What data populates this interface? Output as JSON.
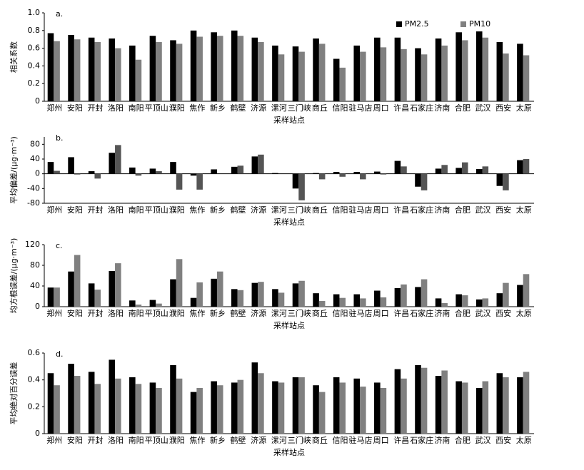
{
  "chart_data": [
    {
      "type": "bar",
      "title": "a.",
      "y_label": "相关系数",
      "x_label": "采样站点",
      "categories": [
        "郑州",
        "安阳",
        "开封",
        "洛阳",
        "南阳",
        "平顶山",
        "濮阳",
        "焦作",
        "新乡",
        "鹤壁",
        "济源",
        "漯河",
        "三门峡",
        "商丘",
        "信阳",
        "驻马店",
        "周口",
        "许昌",
        "石家庄",
        "济南",
        "合肥",
        "武汉",
        "西安",
        "太原"
      ],
      "series": [
        {
          "name": "PM2.5",
          "color": "#000000",
          "values": [
            0.77,
            0.75,
            0.72,
            0.71,
            0.63,
            0.74,
            0.69,
            0.8,
            0.78,
            0.8,
            0.72,
            0.63,
            0.62,
            0.71,
            0.48,
            0.63,
            0.72,
            0.72,
            0.6,
            0.71,
            0.78,
            0.79,
            0.67,
            0.65
          ]
        },
        {
          "name": "PM10",
          "color": "#808080",
          "values": [
            0.68,
            0.7,
            0.67,
            0.6,
            0.47,
            0.67,
            0.65,
            0.73,
            0.74,
            0.74,
            0.67,
            0.53,
            0.56,
            0.65,
            0.38,
            0.56,
            0.61,
            0.59,
            0.53,
            0.63,
            0.69,
            0.72,
            0.54,
            0.52
          ]
        }
      ],
      "ylim": [
        0,
        1
      ],
      "yticks": [
        0,
        0.2,
        0.4,
        0.6,
        0.8,
        {
          "value": 1,
          "label": "1.0"
        }
      ],
      "legend": "upper right"
    },
    {
      "type": "bar",
      "title": "b.",
      "y_label": "平均偏差/(μg·m⁻³)",
      "x_label": "采样站点",
      "categories": [
        "郑州",
        "安阳",
        "开封",
        "洛阳",
        "南阳",
        "平顶山",
        "濮阳",
        "焦作",
        "新乡",
        "鹤壁",
        "济源",
        "漯河",
        "三门峡",
        "商丘",
        "信阳",
        "驻马店",
        "周口",
        "许昌",
        "石家庄",
        "济南",
        "合肥",
        "武汉",
        "西安",
        "太原"
      ],
      "series": [
        {
          "color": "#000000",
          "values": [
            32,
            45,
            7,
            57,
            17,
            14,
            32,
            -5,
            12,
            19,
            47,
            2,
            -40,
            2,
            5,
            5,
            6,
            35,
            -35,
            14,
            16,
            13,
            -33,
            37
          ]
        },
        {
          "color": "#555555",
          "values": [
            8,
            -2,
            -13,
            78,
            -5,
            7,
            -43,
            -43,
            0,
            22,
            52,
            0,
            -72,
            -15,
            -8,
            -15,
            -2,
            20,
            -45,
            24,
            31,
            20,
            -45,
            40
          ]
        }
      ],
      "ylim": [
        -80,
        100
      ],
      "yticks": [
        -80,
        -40,
        0,
        40,
        80
      ]
    },
    {
      "type": "bar",
      "title": "c.",
      "y_label": "均方根误差/(μg·m⁻³)",
      "x_label": "采样站点",
      "categories": [
        "郑州",
        "安阳",
        "开封",
        "洛阳",
        "南阳",
        "平顶山",
        "濮阳",
        "焦作",
        "新乡",
        "鹤壁",
        "济源",
        "漯河",
        "三门峡",
        "商丘",
        "信阳",
        "驻马店",
        "周口",
        "许昌",
        "石家庄",
        "济南",
        "合肥",
        "武汉",
        "西安",
        "太原"
      ],
      "series": [
        {
          "color": "#000000",
          "values": [
            37,
            68,
            45,
            69,
            12,
            13,
            53,
            17,
            54,
            34,
            46,
            34,
            45,
            26,
            24,
            24,
            31,
            36,
            38,
            16,
            24,
            14,
            26,
            42
          ]
        },
        {
          "color": "#808080",
          "values": [
            37,
            100,
            33,
            84,
            4,
            6,
            92,
            47,
            68,
            32,
            48,
            27,
            50,
            11,
            17,
            16,
            18,
            43,
            53,
            7,
            22,
            16,
            46,
            63
          ]
        }
      ],
      "ylim": [
        0,
        120
      ],
      "yticks": [
        0,
        40,
        80,
        120
      ]
    },
    {
      "type": "bar",
      "title": "d.",
      "y_label": "平均绝对百分误差",
      "x_label": "采样站点",
      "categories": [
        "郑州",
        "安阳",
        "开封",
        "洛阳",
        "南阳",
        "平顶山",
        "濮阳",
        "焦作",
        "新乡",
        "鹤壁",
        "济源",
        "漯河",
        "三门峡",
        "商丘",
        "信阳",
        "驻马店",
        "周口",
        "许昌",
        "石家庄",
        "济南",
        "合肥",
        "武汉",
        "西安",
        "太原"
      ],
      "series": [
        {
          "color": "#000000",
          "values": [
            0.45,
            0.52,
            0.46,
            0.55,
            0.42,
            0.38,
            0.51,
            0.31,
            0.39,
            0.38,
            0.53,
            0.39,
            0.42,
            0.36,
            0.42,
            0.41,
            0.38,
            0.48,
            0.51,
            0.43,
            0.39,
            0.34,
            0.45,
            0.42
          ]
        },
        {
          "color": "#808080",
          "values": [
            0.36,
            0.43,
            0.37,
            0.41,
            0.37,
            0.34,
            0.41,
            0.34,
            0.36,
            0.4,
            0.45,
            0.38,
            0.42,
            0.31,
            0.38,
            0.35,
            0.34,
            0.41,
            0.49,
            0.47,
            0.38,
            0.39,
            0.42,
            0.46
          ]
        }
      ],
      "ylim": [
        0,
        0.6
      ],
      "yticks": [
        0,
        0.2,
        0.4,
        0.6
      ]
    }
  ]
}
